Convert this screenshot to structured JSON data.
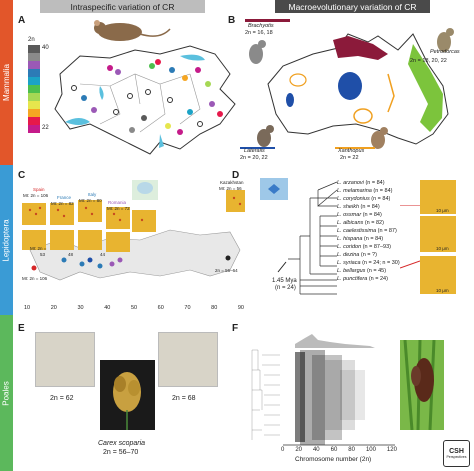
{
  "bands": {
    "mammalia": {
      "label": "Mammalia",
      "color": "#e2562a"
    },
    "lepidoptera": {
      "label": "Lepidoptera",
      "color": "#3a9bd5"
    },
    "poales": {
      "label": "Poales",
      "color": "#5cb85c"
    }
  },
  "headers": {
    "left": "Intraspecific variation of CR",
    "right": "Macroevolutionary variation of CR"
  },
  "panels": {
    "A": {
      "label": "A",
      "legend_title": "2n",
      "legend": [
        {
          "value": "40",
          "color": "#5a5a5a"
        },
        {
          "value": "",
          "color": "#8a8a8a"
        },
        {
          "value": "",
          "color": "#9b59b6"
        },
        {
          "value": "",
          "color": "#2c7bb6"
        },
        {
          "value": "",
          "color": "#1ba3c6"
        },
        {
          "value": "",
          "color": "#4dbf4d"
        },
        {
          "value": "",
          "color": "#a6d854"
        },
        {
          "value": "",
          "color": "#e6e64d"
        },
        {
          "value": "",
          "color": "#f5a623"
        },
        {
          "value": "",
          "color": "#e6194b"
        },
        {
          "value": "22",
          "color": "#c51b8a"
        }
      ]
    },
    "B": {
      "label": "B",
      "groups": [
        {
          "name": "Brachyotis",
          "count": "2n = 16, 18",
          "color": "#8b1a3a"
        },
        {
          "name": "Petrodorcas",
          "count": "2n = 18, 20, 22",
          "color": "#7cc43c"
        },
        {
          "name": "Lateralis",
          "count": "2n = 20, 22",
          "color": "#1f4fa8"
        },
        {
          "name": "Xanthopus",
          "count": "2n = 22",
          "color": "#f0a020"
        }
      ]
    },
    "C": {
      "label": "C",
      "regions": [
        {
          "name": "Spain",
          "count": "MI: 2n = 106",
          "color": "#d62728"
        },
        {
          "name": "France",
          "count": "MI: 2n = 82",
          "color": "#2c7bb6"
        },
        {
          "name": "Italy",
          "count": "MI: 2n = 80",
          "color": "#2c7bb6"
        },
        {
          "name": "Romania",
          "count": "MI: 2n = 72",
          "color": "#9b59b6"
        },
        {
          "name": "Kazakhstan",
          "count": "MI: 2n = 56",
          "color": "#222222"
        }
      ],
      "map_labels": [
        "MI: 2n =",
        "53",
        "48",
        "44",
        "MI: 2n = 106",
        "2n = 56–64"
      ],
      "axis_ticks": [
        "10",
        "20",
        "30",
        "40",
        "50",
        "60",
        "70",
        "80",
        "90"
      ],
      "scale_bar": "10 μm"
    },
    "D": {
      "label": "D",
      "species": [
        {
          "name": "L. arzanovi",
          "count": "(n = 84)"
        },
        {
          "name": "L. melamarina",
          "count": "(n = 84)"
        },
        {
          "name": "L. corydonius",
          "count": "(n = 84)"
        },
        {
          "name": "L. sheikh",
          "count": "(n = 84)"
        },
        {
          "name": "L. ossmar",
          "count": "(n = 84)"
        },
        {
          "name": "L. albicans",
          "count": "(n = 82)"
        },
        {
          "name": "L. caelestissima",
          "count": "(n = 87)"
        },
        {
          "name": "L. hispana",
          "count": "(n = 84)"
        },
        {
          "name": "L. coridon",
          "count": "(n = 87–93)"
        },
        {
          "name": "L. dezina",
          "count": "(n = ?)"
        },
        {
          "name": "L. syriaca",
          "count": "(n = 24; n = 30)"
        },
        {
          "name": "L. bellargus",
          "count": "(n = 45)"
        },
        {
          "name": "L. punctifera",
          "count": "(n = 24)"
        }
      ],
      "node_age": "1.45 Mya",
      "node_n": "(n = 24)",
      "scale_labels": [
        "10 μm",
        "10 μm",
        "10 μm"
      ]
    },
    "E": {
      "label": "E",
      "left_count": "2n = 62",
      "right_count": "2n = 68",
      "species": "Carex scoparia",
      "species_count": "2n = 56–70"
    },
    "F": {
      "label": "F",
      "xlabel": "Chromosome number (2n)",
      "ticks": [
        "0",
        "20",
        "40",
        "60",
        "80",
        "100",
        "120"
      ]
    }
  },
  "logo": {
    "text": "CSH",
    "sub": "Perspectives"
  }
}
